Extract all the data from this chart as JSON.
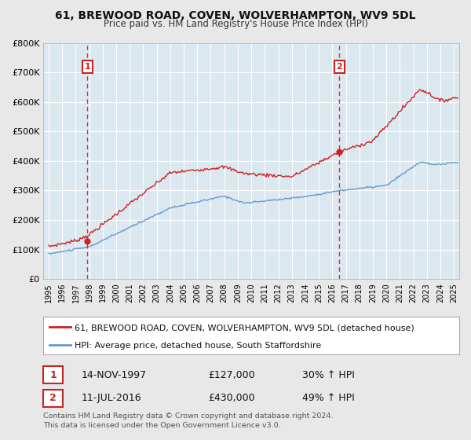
{
  "title": "61, BREWOOD ROAD, COVEN, WOLVERHAMPTON, WV9 5DL",
  "subtitle": "Price paid vs. HM Land Registry's House Price Index (HPI)",
  "bg_color": "#e8e8e8",
  "plot_bg_color": "#dce8f0",
  "red_color": "#cc2222",
  "blue_color": "#6699cc",
  "grid_color": "#ffffff",
  "sale1_date": 1997.87,
  "sale1_price": 127000,
  "sale2_date": 2016.53,
  "sale2_price": 430000,
  "legend_entries": [
    "61, BREWOOD ROAD, COVEN, WOLVERHAMPTON, WV9 5DL (detached house)",
    "HPI: Average price, detached house, South Staffordshire"
  ],
  "annotation1": [
    "1",
    "14-NOV-1997",
    "£127,000",
    "30% ↑ HPI"
  ],
  "annotation2": [
    "2",
    "11-JUL-2016",
    "£430,000",
    "49% ↑ HPI"
  ],
  "footer": "Contains HM Land Registry data © Crown copyright and database right 2024.\nThis data is licensed under the Open Government Licence v3.0.",
  "ylim": [
    0,
    800000
  ],
  "yticks": [
    0,
    100000,
    200000,
    300000,
    400000,
    500000,
    600000,
    700000,
    800000
  ],
  "ytick_labels": [
    "£0",
    "£100K",
    "£200K",
    "£300K",
    "£400K",
    "£500K",
    "£600K",
    "£700K",
    "£800K"
  ],
  "xlim_start": 1994.6,
  "xlim_end": 2025.4
}
